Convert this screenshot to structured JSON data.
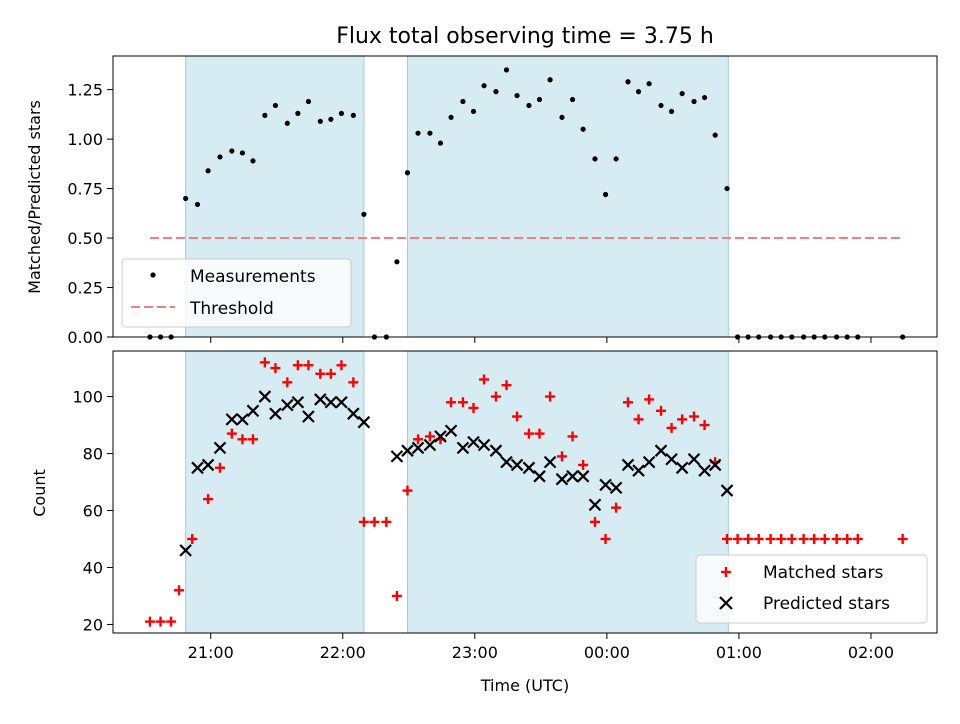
{
  "chart_data": [
    {
      "type": "scatter",
      "panel": "top",
      "title": "Flux total observing time = 3.75 h",
      "ylabel": "Matched/Predicted stars",
      "xlabel": "",
      "ylim": [
        0,
        1.42
      ],
      "yticks": [
        "0.00",
        "0.25",
        "0.50",
        "0.75",
        "1.00",
        "1.25"
      ],
      "ytick_values": [
        0,
        0.25,
        0.5,
        0.75,
        1.0,
        1.25
      ],
      "xticks_hours": [
        21,
        22,
        23,
        24,
        25,
        26
      ],
      "x_range_hours": [
        20.26,
        26.5
      ],
      "shaded_regions_hours": [
        [
          20.81,
          22.16
        ],
        [
          22.49,
          24.92
        ]
      ],
      "legend": {
        "position": "lower-left",
        "entries": [
          "Measurements",
          "Threshold"
        ]
      },
      "series": [
        {
          "name": "Measurements",
          "color": "#000000",
          "x_hours": [
            20.54,
            20.62,
            20.7,
            20.81,
            20.9,
            20.98,
            21.07,
            21.16,
            21.24,
            21.32,
            21.41,
            21.49,
            21.58,
            21.66,
            21.74,
            21.83,
            21.91,
            21.99,
            22.08,
            22.16,
            22.24,
            22.33,
            22.41,
            22.49,
            22.57,
            22.66,
            22.74,
            22.82,
            22.91,
            22.99,
            23.07,
            23.16,
            23.24,
            23.32,
            23.41,
            23.49,
            23.57,
            23.66,
            23.74,
            23.82,
            23.91,
            23.99,
            24.07,
            24.16,
            24.24,
            24.32,
            24.41,
            24.49,
            24.57,
            24.66,
            24.74,
            24.82,
            24.91,
            24.99,
            25.07,
            25.15,
            25.24,
            25.32,
            25.4,
            25.49,
            25.57,
            25.65,
            25.74,
            25.82,
            25.9,
            26.24
          ],
          "values": [
            0,
            0,
            0,
            0.7,
            0.67,
            0.84,
            0.91,
            0.94,
            0.93,
            0.89,
            1.12,
            1.17,
            1.08,
            1.13,
            1.19,
            1.09,
            1.1,
            1.13,
            1.12,
            0.62,
            0,
            0,
            0.38,
            0.83,
            1.03,
            1.03,
            0.98,
            1.11,
            1.19,
            1.14,
            1.27,
            1.24,
            1.35,
            1.22,
            1.17,
            1.2,
            1.3,
            1.11,
            1.2,
            1.05,
            0.9,
            0.72,
            0.9,
            1.29,
            1.24,
            1.28,
            1.17,
            1.14,
            1.23,
            1.19,
            1.21,
            1.02,
            0.75,
            0,
            0,
            0,
            0,
            0,
            0,
            0,
            0,
            0,
            0,
            0,
            0,
            0
          ]
        },
        {
          "name": "Threshold",
          "color": "#f08080",
          "style": "dashed",
          "x_hours": [
            20.54,
            26.24
          ],
          "values": [
            0.5,
            0.5
          ]
        }
      ]
    },
    {
      "type": "scatter",
      "panel": "bottom",
      "title": "",
      "xlabel": "Time (UTC)",
      "ylabel": "Count",
      "ylim": [
        17,
        116
      ],
      "yticks": [
        "20",
        "40",
        "60",
        "80",
        "100"
      ],
      "ytick_values": [
        20,
        40,
        60,
        80,
        100
      ],
      "xticks": [
        "21:00",
        "22:00",
        "23:00",
        "00:00",
        "01:00",
        "02:00"
      ],
      "xticks_hours": [
        21,
        22,
        23,
        24,
        25,
        26
      ],
      "x_range_hours": [
        20.26,
        26.5
      ],
      "shaded_regions_hours": [
        [
          20.81,
          22.16
        ],
        [
          22.49,
          24.92
        ]
      ],
      "legend": {
        "position": "lower-right",
        "entries": [
          "Matched stars",
          "Predicted stars"
        ]
      },
      "series": [
        {
          "name": "Matched stars",
          "color": "#ff0000",
          "marker": "plus",
          "x_hours": [
            20.54,
            20.62,
            20.7,
            20.76,
            20.86,
            20.98,
            21.07,
            21.16,
            21.24,
            21.32,
            21.41,
            21.49,
            21.58,
            21.66,
            21.74,
            21.83,
            21.91,
            21.99,
            22.08,
            22.16,
            22.24,
            22.33,
            22.41,
            22.49,
            22.57,
            22.66,
            22.74,
            22.82,
            22.91,
            22.99,
            23.07,
            23.16,
            23.24,
            23.32,
            23.41,
            23.49,
            23.57,
            23.66,
            23.74,
            23.82,
            23.91,
            23.99,
            24.07,
            24.16,
            24.24,
            24.32,
            24.41,
            24.49,
            24.57,
            24.66,
            24.74,
            24.82,
            24.91,
            24.99,
            25.07,
            25.15,
            25.24,
            25.32,
            25.4,
            25.49,
            25.57,
            25.65,
            25.74,
            25.82,
            25.9,
            26.24
          ],
          "values": [
            21,
            21,
            21,
            32,
            50,
            64,
            75,
            87,
            85,
            85,
            112,
            110,
            105,
            111,
            111,
            108,
            108,
            111,
            105,
            56,
            56,
            56,
            30,
            67,
            85,
            86,
            85,
            98,
            98,
            96,
            106,
            100,
            104,
            93,
            87,
            87,
            100,
            79,
            86,
            76,
            56,
            50,
            61,
            98,
            92,
            99,
            95,
            89,
            92,
            93,
            90,
            77,
            50,
            50,
            50,
            50,
            50,
            50,
            50,
            50,
            50,
            50,
            50,
            50,
            50,
            50
          ]
        },
        {
          "name": "Predicted stars",
          "color": "#000000",
          "marker": "x",
          "x_hours": [
            20.81,
            20.9,
            20.98,
            21.07,
            21.16,
            21.24,
            21.32,
            21.41,
            21.49,
            21.58,
            21.66,
            21.74,
            21.83,
            21.91,
            21.99,
            22.08,
            22.16,
            22.41,
            22.49,
            22.57,
            22.66,
            22.74,
            22.82,
            22.91,
            22.99,
            23.07,
            23.16,
            23.24,
            23.32,
            23.41,
            23.49,
            23.57,
            23.66,
            23.74,
            23.82,
            23.91,
            23.99,
            24.07,
            24.16,
            24.24,
            24.32,
            24.41,
            24.49,
            24.57,
            24.66,
            24.74,
            24.82,
            24.91
          ],
          "values": [
            46,
            75,
            76,
            82,
            92,
            92,
            95,
            100,
            94,
            97,
            98,
            93,
            99,
            98,
            98,
            94,
            91,
            79,
            81,
            82,
            83,
            86,
            88,
            82,
            84,
            83,
            81,
            77,
            76,
            75,
            72,
            77,
            71,
            72,
            72,
            62,
            69,
            68,
            76,
            74,
            77,
            81,
            78,
            75,
            78,
            74,
            76,
            67
          ]
        }
      ]
    }
  ]
}
